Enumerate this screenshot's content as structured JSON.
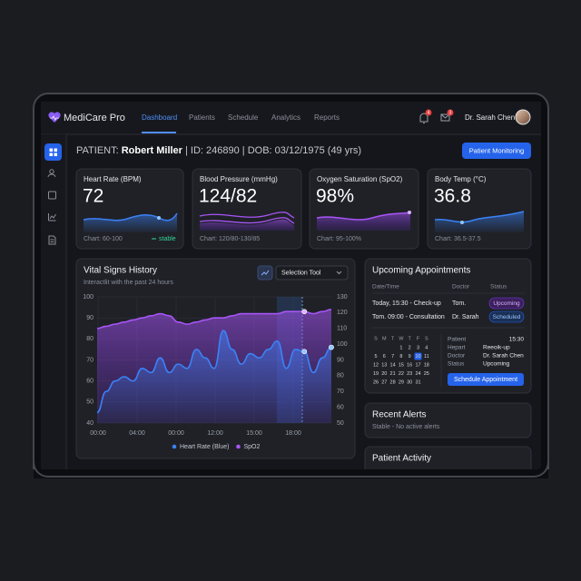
{
  "nav": {
    "brand": "MediCare Pro",
    "items": [
      "Dashboard",
      "Patients",
      "Schedule",
      "Analytics",
      "Reports"
    ],
    "notifications": "4",
    "messages": "3",
    "user": "Dr. Sarah Chen"
  },
  "patient": {
    "label": "PATIENT:",
    "name": "Robert Miller",
    "details": "| ID: 246890 | DOB: 03/12/1975 (49 yrs)",
    "button": "Patient Monitoring"
  },
  "cards": [
    {
      "title": "Heart Rate (BPM)",
      "value": "72",
      "range": "Chart: 60-100",
      "status": "stable"
    },
    {
      "title": "Blood Pressure (mmHg)",
      "value": "124/82",
      "range": "Chart: 120/80-130/85"
    },
    {
      "title": "Oxygen Saturation (SpO2)",
      "value": "98%",
      "range": "Chart: 95-100%"
    },
    {
      "title": "Body Temp (°C)",
      "value": "36.8",
      "range": "Chart: 36.5-37.5"
    }
  ],
  "vitals_chart": {
    "type": "line",
    "title": "Vital Signs History",
    "subtitle": "Interactlit with the past 24 hours",
    "tool": "Selection Tool",
    "x_labels": [
      "00:00",
      "04:00",
      "00:00",
      "12:00",
      "15:00",
      "18:00"
    ],
    "ylim": [
      40,
      100
    ],
    "yticks": [
      40,
      50,
      60,
      70,
      80,
      90,
      100
    ],
    "y2lim": [
      50,
      130
    ],
    "y2ticks": [
      50,
      60,
      70,
      80,
      90,
      100,
      110,
      120,
      130
    ],
    "grid": true,
    "series": [
      {
        "name": "Heart Rate (Blue)",
        "color": "#3b82f6",
        "values": [
          45,
          55,
          60,
          62,
          60,
          66,
          64,
          71,
          64,
          68,
          66,
          75,
          71,
          66,
          84,
          75,
          68,
          73,
          71,
          75,
          79,
          66,
          75,
          74,
          64,
          71,
          76
        ]
      },
      {
        "name": "SpO2",
        "color": "#a855f7",
        "values": [
          85,
          86,
          87,
          88,
          89,
          90,
          91,
          92,
          91,
          88,
          87,
          88,
          89,
          90,
          90,
          91,
          92,
          92,
          92,
          92,
          92,
          93,
          93,
          93,
          92,
          93,
          94
        ]
      }
    ]
  },
  "appointments": {
    "title": "Upcoming Appointments",
    "headers": [
      "Date/Time",
      "Doctor",
      "Status"
    ],
    "rows": [
      [
        "Today, 15:30 - Check-up",
        "Tom.",
        "Upcoming"
      ],
      [
        "Tom. 09:00 - Consultation",
        "Dr. Sarah",
        "Scheduled"
      ]
    ],
    "calendar": {
      "weekdays": [
        "S",
        "M",
        "T",
        "W",
        "T",
        "F",
        "S"
      ],
      "rows": [
        [
          1,
          2,
          3,
          4
        ],
        [
          5,
          6,
          7,
          8,
          9,
          10,
          11
        ],
        [
          12,
          13,
          14,
          15,
          16,
          17,
          18
        ],
        [
          19,
          20,
          21,
          22,
          23,
          24,
          25
        ],
        [
          26,
          27,
          28,
          29,
          30,
          31
        ]
      ],
      "selected": 10
    },
    "details": [
      [
        "Patient",
        "15:30"
      ],
      [
        "Hepart",
        "Reeoik-up"
      ],
      [
        "Doctor",
        "Dr. Sarah Chen"
      ],
      [
        "Status",
        "Upcoming"
      ]
    ],
    "button": "Schedule Appointment"
  },
  "alerts": {
    "title": "Recent Alerts",
    "text": "Stable - No active alerts"
  },
  "activity": {
    "title": "Patient Activity"
  }
}
